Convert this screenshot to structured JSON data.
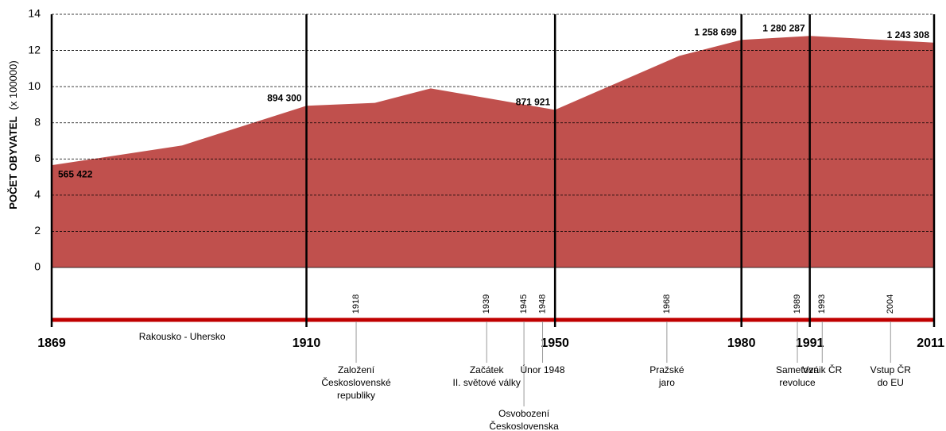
{
  "chart_data": {
    "type": "area",
    "y_label": "POČET OBYVATEL",
    "y_label_unit": "(x 100000)",
    "x": [
      1869,
      1890,
      1910,
      1921,
      1930,
      1950,
      1970,
      1980,
      1991,
      2011
    ],
    "values": [
      5.65422,
      6.75,
      8.943,
      9.1,
      9.9,
      8.71921,
      11.7,
      12.58699,
      12.80287,
      12.43308
    ],
    "value_labels": [
      "565 422",
      null,
      "894 300",
      null,
      null,
      "871 921",
      null,
      "1 258 699",
      "1 280 287",
      "1 243 308"
    ],
    "color": "#c0504d",
    "xlim": [
      1869,
      2011
    ],
    "xticks": [
      1869,
      1910,
      1950,
      1980,
      1991,
      2011
    ],
    "ylim": [
      0,
      14
    ],
    "yticks": [
      0,
      2,
      4,
      6,
      8,
      10,
      12,
      14
    ],
    "grid": true,
    "periods": [
      {
        "x": 1890,
        "label": "Rakousko - Uhersko"
      }
    ],
    "events": [
      {
        "year": 1918,
        "lines": [
          "Založení",
          "Československé",
          "republiky"
        ]
      },
      {
        "year": 1939,
        "lines": [
          "Začátek",
          "II. světové války"
        ]
      },
      {
        "year": 1945,
        "lines": [
          "Osvobození",
          "Československa"
        ]
      },
      {
        "year": 1948,
        "lines": [
          "Únor 1948"
        ]
      },
      {
        "year": 1968,
        "lines": [
          "Pražské",
          "jaro"
        ]
      },
      {
        "year": 1989,
        "lines": [
          "Sametová",
          "revoluce"
        ]
      },
      {
        "year": 1993,
        "lines": [
          "Vznik ČR"
        ]
      },
      {
        "year": 2004,
        "lines": [
          "Vstup ČR",
          "do EU"
        ]
      }
    ]
  }
}
